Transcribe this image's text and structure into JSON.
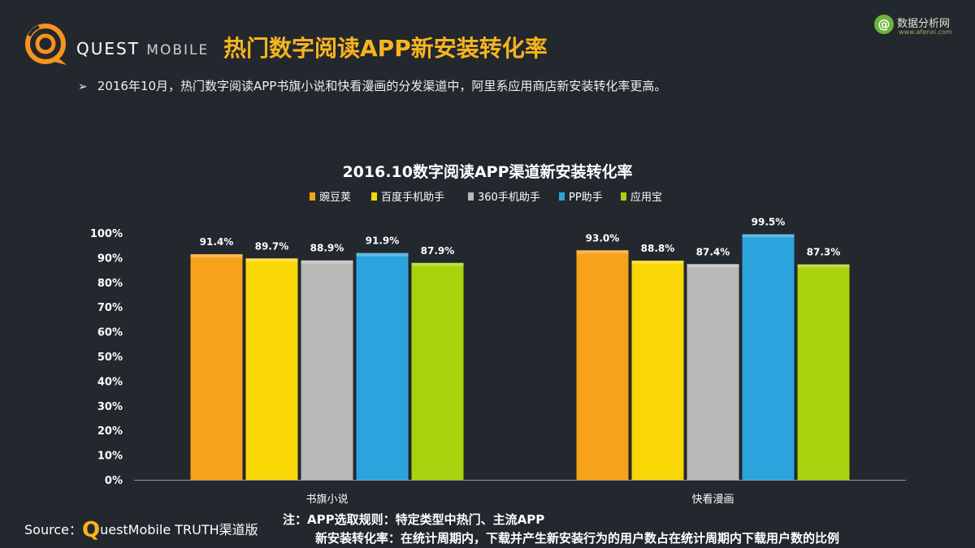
{
  "header": {
    "brand_main": "QUEST",
    "brand_sub": "MOBILE",
    "title": "热门数字阅读APP新安装转化率",
    "watermark_icon": "@",
    "watermark_name": "数据分析网",
    "watermark_url": "www.afenxi.com"
  },
  "bullet": {
    "marker": "➢",
    "text": "2016年10月，热门数字阅读APP书旗小说和快看漫画的分发渠道中，阿里系应用商店新安装转化率更高。"
  },
  "chart_data": {
    "type": "bar",
    "title": "2016.10数字阅读APP渠道新安装转化率",
    "categories": [
      "书旗小说",
      "快看漫画"
    ],
    "series": [
      {
        "name": "豌豆荚",
        "color": "#f7a21b",
        "values": [
          91.4,
          93.0
        ],
        "labels": [
          "91.4%",
          "93.0%"
        ]
      },
      {
        "name": "百度手机助手",
        "color": "#f9d606",
        "values": [
          89.7,
          88.8
        ],
        "labels": [
          "89.7%",
          "88.8%"
        ]
      },
      {
        "name": "360手机助手",
        "color": "#b9b9b9",
        "values": [
          88.9,
          87.4
        ],
        "labels": [
          "88.9%",
          "87.4%"
        ]
      },
      {
        "name": "PP助手",
        "color": "#2ba3dc",
        "values": [
          91.9,
          99.5
        ],
        "labels": [
          "91.9%",
          "99.5%"
        ]
      },
      {
        "name": "应用宝",
        "color": "#a8d20b",
        "values": [
          87.9,
          87.3
        ],
        "labels": [
          "87.9%",
          "87.3%"
        ]
      }
    ],
    "ylim": [
      0,
      100
    ],
    "yticks": [
      "0%",
      "10%",
      "20%",
      "30%",
      "40%",
      "50%",
      "60%",
      "70%",
      "80%",
      "90%",
      "100%"
    ],
    "legend_position": "top",
    "grid": false
  },
  "footer": {
    "source_label": "Source：",
    "source_q": "Q",
    "source_rest": "uestMobile TRUTH渠道版",
    "note_line1": "注：APP选取规则：特定类型中热门、主流APP",
    "note_line2": "新安装转化率：在统计周期内，下载并产生新安装行为的用户数占在统计周期内下载用户数的比例"
  }
}
